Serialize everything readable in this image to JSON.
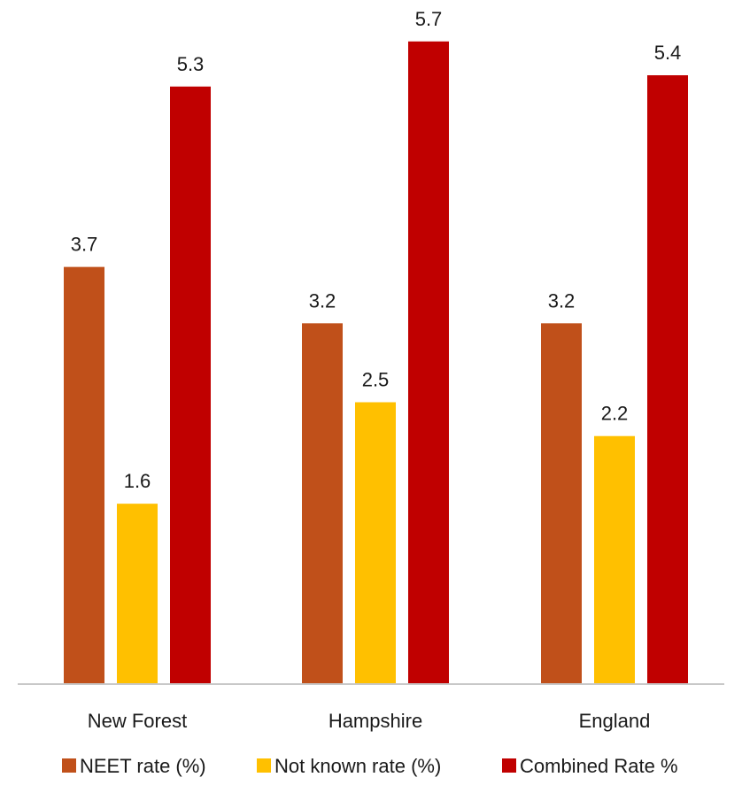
{
  "chart_data": {
    "type": "bar",
    "title": "",
    "xlabel": "",
    "ylabel": "",
    "ylim": [
      0,
      5.9
    ],
    "grid": false,
    "legend_position": "bottom",
    "categories": [
      "New Forest",
      "Hampshire",
      "England"
    ],
    "series": [
      {
        "name": "NEET rate (%)",
        "color": "#c0501a",
        "values": [
          3.7,
          3.2,
          3.2
        ]
      },
      {
        "name": "Not known rate (%)",
        "color": "#ffc000",
        "values": [
          1.6,
          2.5,
          2.2
        ]
      },
      {
        "name": "Combined Rate %",
        "color": "#c00000",
        "values": [
          5.3,
          5.7,
          5.4
        ]
      }
    ]
  }
}
